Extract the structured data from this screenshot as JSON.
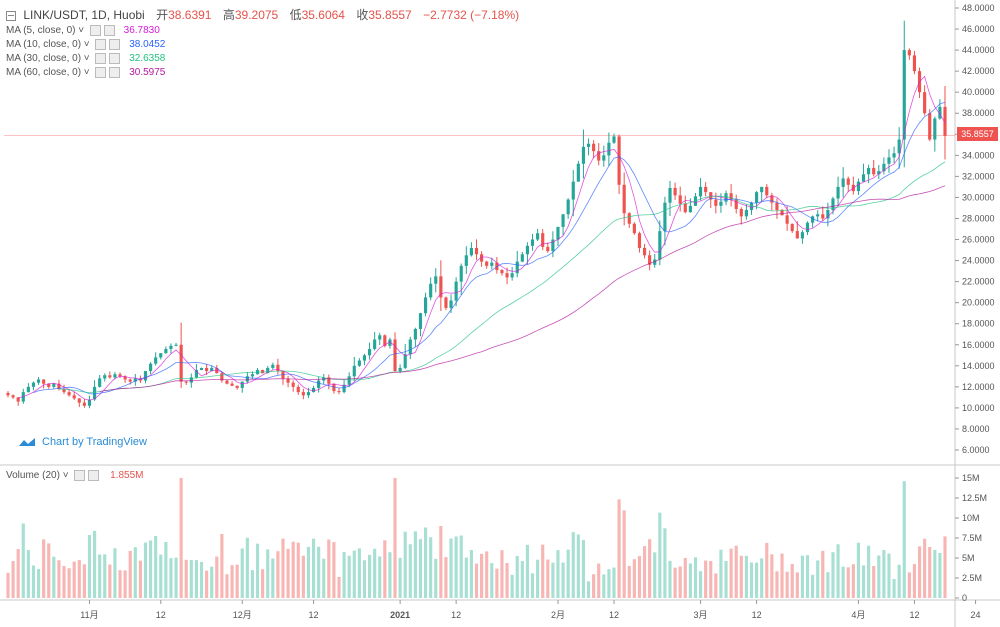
{
  "header": {
    "symbol": "LINK/USDT, 1D, Huobi",
    "open_label": "开",
    "open": "38.6391",
    "high_label": "高",
    "high": "39.2075",
    "low_label": "低",
    "low": "35.6064",
    "close_label": "收",
    "close": "35.8557",
    "change": "−2.7732 (−7.18%)"
  },
  "indicators": [
    {
      "label": "MA (5, close, 0)",
      "value": "36.7830",
      "color": "#d81bd8"
    },
    {
      "label": "MA (10, close, 0)",
      "value": "38.0452",
      "color": "#2962ff"
    },
    {
      "label": "MA (30, close, 0)",
      "value": "32.6358",
      "color": "#26c281"
    },
    {
      "label": "MA (60, close, 0)",
      "value": "30.5975",
      "color": "#b5179e"
    }
  ],
  "volume_indicator": {
    "label": "Volume (20)",
    "value": "1.855M"
  },
  "brand": "Chart by TradingView",
  "current_price_tag": "35.8557",
  "chart_data": {
    "type": "candlestick",
    "up_color": "#26a69a",
    "down_color": "#ef5350",
    "price_axis": {
      "range": [
        4,
        48
      ],
      "ticks": [
        "48.0000",
        "46.0000",
        "44.0000",
        "42.0000",
        "40.0000",
        "38.0000",
        "36.0000",
        "34.0000",
        "32.0000",
        "30.0000",
        "28.0000",
        "26.0000",
        "24.0000",
        "22.0000",
        "20.0000",
        "18.0000",
        "16.0000",
        "14.0000",
        "12.0000",
        "10.0000",
        "8.0000",
        "6.0000"
      ]
    },
    "volume_axis": {
      "range": [
        0,
        16
      ],
      "unit": "M",
      "ticks": [
        "15M",
        "12.5M",
        "10M",
        "7.5M",
        "5M",
        "2.5M",
        "0"
      ]
    },
    "x_ticks": [
      {
        "label": "11月",
        "i": 16
      },
      {
        "label": "12",
        "i": 30
      },
      {
        "label": "12月",
        "i": 46
      },
      {
        "label": "12",
        "i": 60
      },
      {
        "label": "2021",
        "i": 77,
        "bold": true
      },
      {
        "label": "12",
        "i": 88
      },
      {
        "label": "2月",
        "i": 108
      },
      {
        "label": "12",
        "i": 119
      },
      {
        "label": "3月",
        "i": 136
      },
      {
        "label": "12",
        "i": 147
      },
      {
        "label": "4月",
        "i": 167
      },
      {
        "label": "12",
        "i": 178
      },
      {
        "label": "24",
        "i": 190
      }
    ],
    "closes": [
      11.2,
      11.0,
      10.6,
      11.5,
      12.0,
      12.4,
      12.7,
      12.3,
      12.0,
      12.3,
      11.8,
      11.5,
      11.2,
      10.9,
      10.5,
      10.2,
      10.8,
      12.0,
      12.8,
      13.1,
      12.9,
      13.2,
      13.0,
      12.7,
      12.5,
      12.8,
      12.6,
      13.5,
      14.2,
      14.8,
      15.2,
      15.6,
      15.9,
      16.0,
      12.5,
      12.4,
      12.9,
      13.6,
      13.8,
      13.5,
      13.8,
      13.3,
      12.6,
      12.3,
      12.1,
      11.9,
      12.5,
      13.0,
      13.2,
      13.6,
      13.3,
      13.8,
      14.1,
      13.5,
      12.8,
      12.4,
      12.0,
      11.5,
      11.2,
      11.5,
      11.9,
      12.6,
      12.9,
      12.3,
      11.6,
      11.5,
      12.2,
      13.0,
      14.0,
      14.5,
      15.0,
      15.6,
      16.5,
      16.9,
      15.9,
      16.5,
      13.5,
      13.8,
      15.1,
      16.5,
      17.5,
      19.0,
      20.5,
      21.8,
      22.5,
      20.5,
      19.5,
      20.2,
      22.0,
      23.5,
      24.5,
      25.2,
      24.6,
      23.9,
      23.5,
      23.8,
      23.1,
      22.8,
      22.4,
      22.8,
      23.9,
      24.6,
      25.4,
      26.0,
      26.6,
      25.3,
      24.9,
      26.0,
      27.2,
      28.4,
      29.8,
      31.5,
      33.2,
      34.8,
      35.1,
      34.4,
      33.5,
      34.0,
      35.2,
      35.8,
      31.2,
      28.5,
      27.5,
      26.6,
      25.2,
      24.5,
      23.6,
      24.1,
      26.8,
      29.5,
      30.9,
      30.2,
      29.4,
      28.6,
      29.2,
      30.1,
      31.0,
      30.5,
      29.8,
      29.2,
      29.6,
      30.4,
      29.8,
      28.9,
      28.2,
      28.8,
      29.5,
      30.5,
      31.0,
      30.2,
      29.5,
      28.8,
      28.3,
      27.5,
      26.8,
      26.1,
      26.7,
      27.6,
      28.2,
      28.4,
      28.0,
      28.8,
      29.9,
      31.0,
      31.8,
      31.2,
      30.6,
      31.5,
      32.2,
      32.8,
      32.2,
      32.5,
      33.2,
      33.8,
      34.2,
      35.5,
      44.0,
      43.5,
      42.0,
      40.0,
      38.0,
      35.5,
      37.5,
      38.6,
      35.86
    ]
  }
}
